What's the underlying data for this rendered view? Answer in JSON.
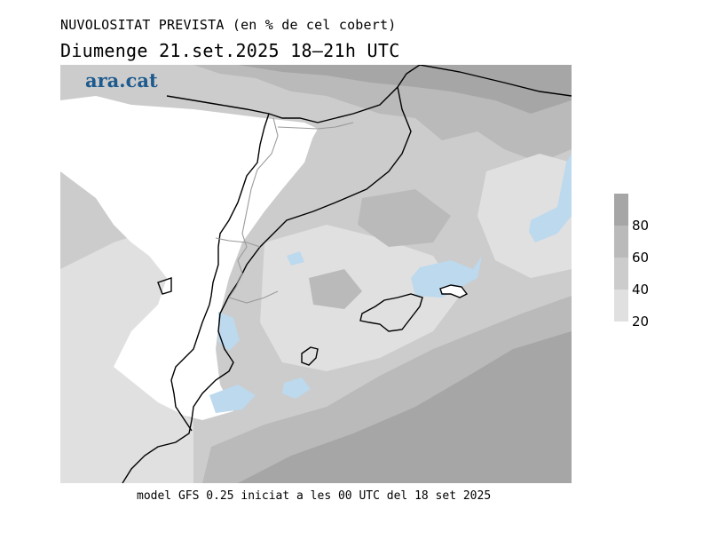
{
  "title": {
    "line1": "NUVOLOSITAT PREVISTA (en % de cel cobert)",
    "line2": "Diumenge  21.set.2025 18–21h UTC"
  },
  "logo_text": "ara.cat",
  "footer": "model GFS 0.25 iniciat a les 00 UTC del 18 set 2025",
  "legend": {
    "labels": [
      "80",
      "60",
      "40",
      "20"
    ],
    "colors": [
      "#a6a6a6",
      "#bababa",
      "#cccccc",
      "#e0e0e0"
    ]
  },
  "palette": {
    "cloud_low": "#e0e0e0",
    "cloud_mid": "#cccccc",
    "cloud_high": "#bababa",
    "cloud_full": "#a6a6a6",
    "clear": "#ffffff",
    "rain": "#bcd9ee",
    "border": "#000000",
    "region_border": "#9a9a9a"
  }
}
